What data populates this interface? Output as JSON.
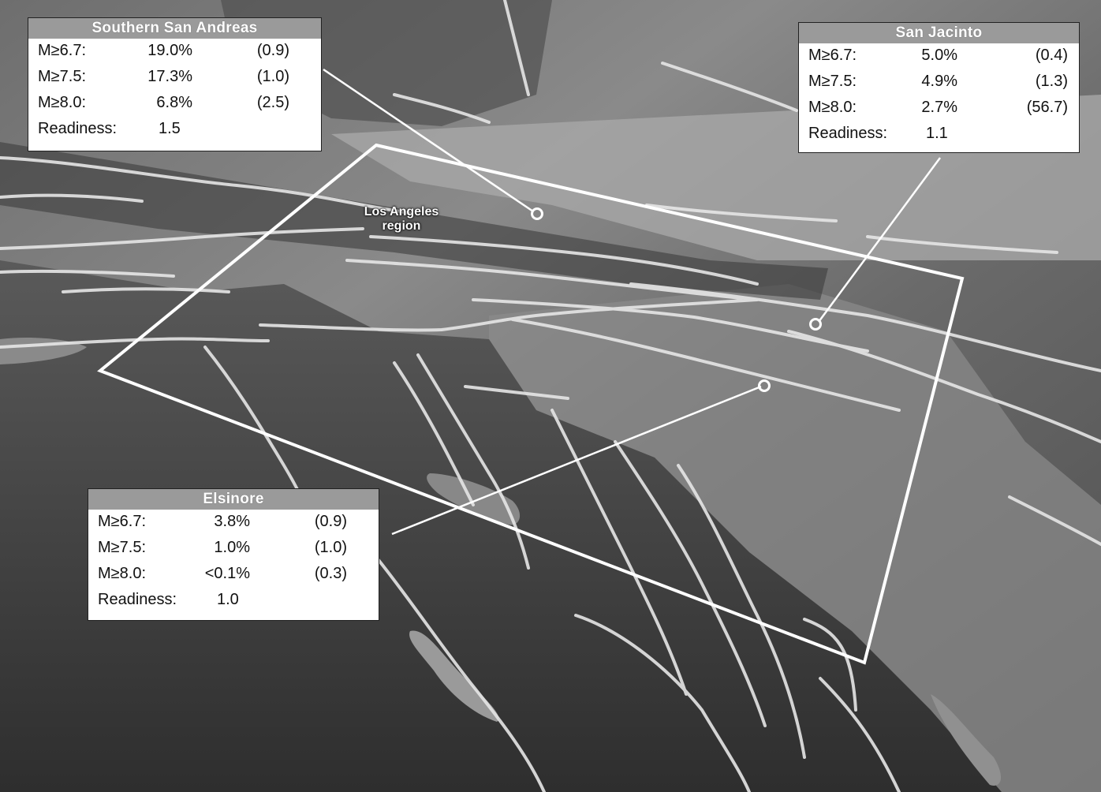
{
  "map": {
    "label": {
      "line1": "Los Angeles",
      "line2": "region"
    }
  },
  "panels": {
    "southern_san_andreas": {
      "title": "Southern San Andreas",
      "rows": [
        {
          "label": "M≥6.7:",
          "value": "19.0%",
          "extra": "(0.9)"
        },
        {
          "label": "M≥7.5:",
          "value": "17.3%",
          "extra": "(1.0)"
        },
        {
          "label": "M≥8.0:",
          "value": "6.8%",
          "extra": "(2.5)"
        },
        {
          "label": "Readiness:",
          "value": "1.5",
          "extra": ""
        }
      ]
    },
    "san_jacinto": {
      "title": "San Jacinto",
      "rows": [
        {
          "label": "M≥6.7:",
          "value": "5.0%",
          "extra": "(0.4)"
        },
        {
          "label": "M≥7.5:",
          "value": "4.9%",
          "extra": "(1.3)"
        },
        {
          "label": "M≥8.0:",
          "value": "2.7%",
          "extra": "(56.7)"
        },
        {
          "label": "Readiness:",
          "value": "1.1",
          "extra": ""
        }
      ]
    },
    "elsinore": {
      "title": "Elsinore",
      "rows": [
        {
          "label": "M≥6.7:",
          "value": "3.8%",
          "extra": "(0.9)"
        },
        {
          "label": "M≥7.5:",
          "value": "1.0%",
          "extra": "(1.0)"
        },
        {
          "label": "M≥8.0:",
          "value": "<0.1%",
          "extra": "(0.3)"
        },
        {
          "label": "Readiness:",
          "value": "1.0",
          "extra": ""
        }
      ]
    }
  }
}
